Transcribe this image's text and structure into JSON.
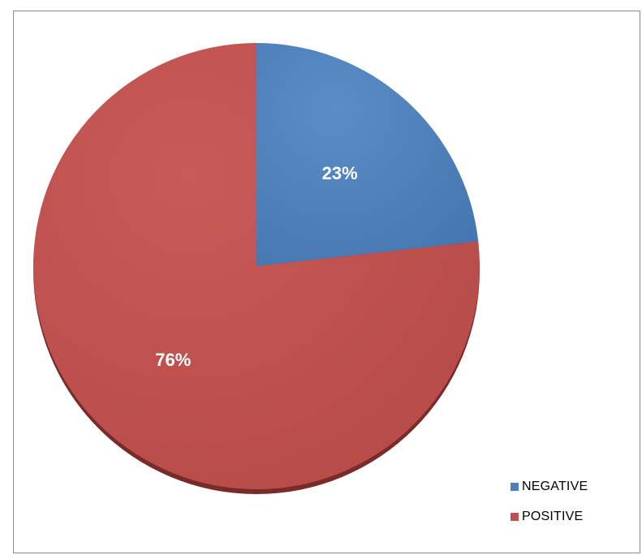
{
  "chart_data": {
    "type": "pie",
    "title": "",
    "slices": [
      {
        "name": "NEGATIVE",
        "value": 23,
        "label": "23%",
        "color": "#4f81bd"
      },
      {
        "name": "POSITIVE",
        "value": 76,
        "label": "76%",
        "color": "#c0504d"
      }
    ],
    "start_angle": "12 o'clock",
    "direction": "clockwise",
    "legend_position": "bottom-right",
    "style": "3d-shaded"
  }
}
